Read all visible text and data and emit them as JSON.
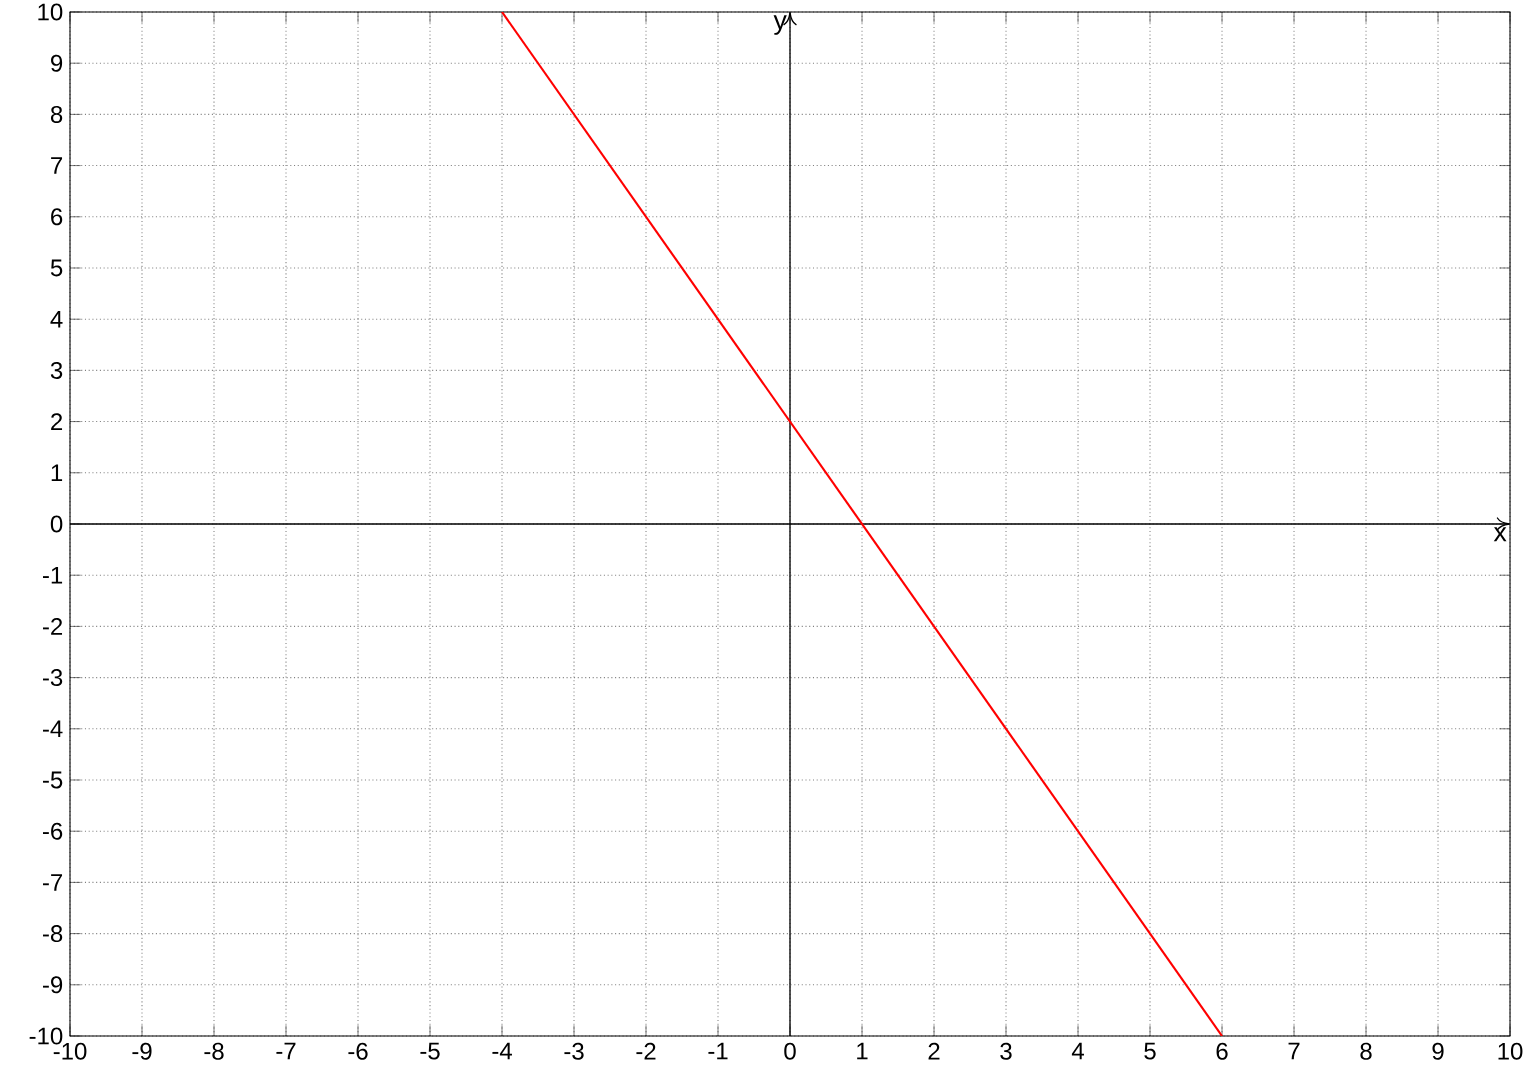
{
  "chart_data": {
    "type": "line",
    "xlabel": "x",
    "ylabel": "y",
    "x": [
      -4,
      6
    ],
    "series": [
      {
        "color": "#ff0000",
        "values": [
          10,
          -10
        ]
      }
    ],
    "xlim": [
      -10,
      10
    ],
    "ylim": [
      -10,
      10
    ],
    "xticks": [
      -10,
      -9,
      -8,
      -7,
      -6,
      -5,
      -4,
      -3,
      -2,
      -1,
      0,
      1,
      2,
      3,
      4,
      5,
      6,
      7,
      8,
      9,
      10
    ],
    "yticks": [
      -10,
      -9,
      -8,
      -7,
      -6,
      -5,
      -4,
      -3,
      -2,
      -1,
      0,
      1,
      2,
      3,
      4,
      5,
      6,
      7,
      8,
      9,
      10
    ],
    "grid": true
  }
}
